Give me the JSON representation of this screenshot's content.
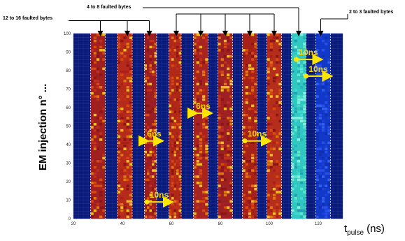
{
  "chart_data": {
    "type": "heatmap",
    "title": "",
    "xlabel_main": "t",
    "xlabel_sub": "pulse",
    "xlabel_unit": "(ns)",
    "ylabel": "EM injection n° ...",
    "xlim": [
      20,
      130
    ],
    "ylim": [
      0,
      100
    ],
    "xticks": [
      20,
      40,
      60,
      80,
      100,
      120
    ],
    "yticks": [
      0,
      10,
      20,
      30,
      40,
      50,
      60,
      70,
      80,
      90,
      100
    ],
    "bands": [
      {
        "x0": 27,
        "x1": 33,
        "color": "#a02020",
        "category": "12 to 16 faulted bytes"
      },
      {
        "x0": 38,
        "x1": 44,
        "color": "#b52a1a",
        "category": "12 to 16 faulted bytes"
      },
      {
        "x0": 49,
        "x1": 54,
        "color": "#9a1e22",
        "category": "12 to 16 faulted bytes"
      },
      {
        "x0": 59,
        "x1": 64,
        "color": "#b02818",
        "category": "4 to 8 faulted bytes"
      },
      {
        "x0": 69,
        "x1": 75,
        "color": "#a82420",
        "category": "4 to 8 faulted bytes"
      },
      {
        "x0": 79,
        "x1": 85,
        "color": "#9c2024",
        "category": "4 to 8 faulted bytes"
      },
      {
        "x0": 89,
        "x1": 95,
        "color": "#a62218",
        "category": "4 to 8 faulted bytes"
      },
      {
        "x0": 99,
        "x1": 105,
        "color": "#b52e1c",
        "category": "4 to 8 faulted bytes"
      },
      {
        "x0": 109,
        "x1": 115,
        "color": "#30c8c0",
        "category": "2 to 3 faulted bytes"
      },
      {
        "x0": 119,
        "x1": 125,
        "color": "#1238c8",
        "category": "2 to 3 faulted bytes"
      }
    ],
    "annotations": [
      {
        "text": "12 to 16 faulted bytes",
        "targets": [
          31,
          42,
          51
        ]
      },
      {
        "text": "4 to 8 faulted bytes",
        "targets": [
          62,
          72,
          82,
          92,
          102,
          112
        ]
      },
      {
        "text": "2 to 3 faulted bytes",
        "targets": [
          121
        ]
      }
    ],
    "interval_labels": [
      {
        "text": "6ns",
        "x0": 50,
        "x1": 56,
        "y": 42
      },
      {
        "text": "6ns",
        "x0": 70,
        "x1": 76,
        "y": 57
      },
      {
        "text": "10ns",
        "x0": 90,
        "x1": 100,
        "y": 42
      },
      {
        "text": "10ns",
        "x0": 50,
        "x1": 60,
        "y": 9
      },
      {
        "text": "10ns",
        "x0": 111,
        "x1": 121,
        "y": 86
      },
      {
        "text": "10ns",
        "x0": 115,
        "x1": 125,
        "y": 77
      }
    ],
    "colors": {
      "background": "#0a1a78",
      "grid": "#2a3aa8",
      "arrow": "#ffe600",
      "label_text": "#f6d400"
    }
  }
}
